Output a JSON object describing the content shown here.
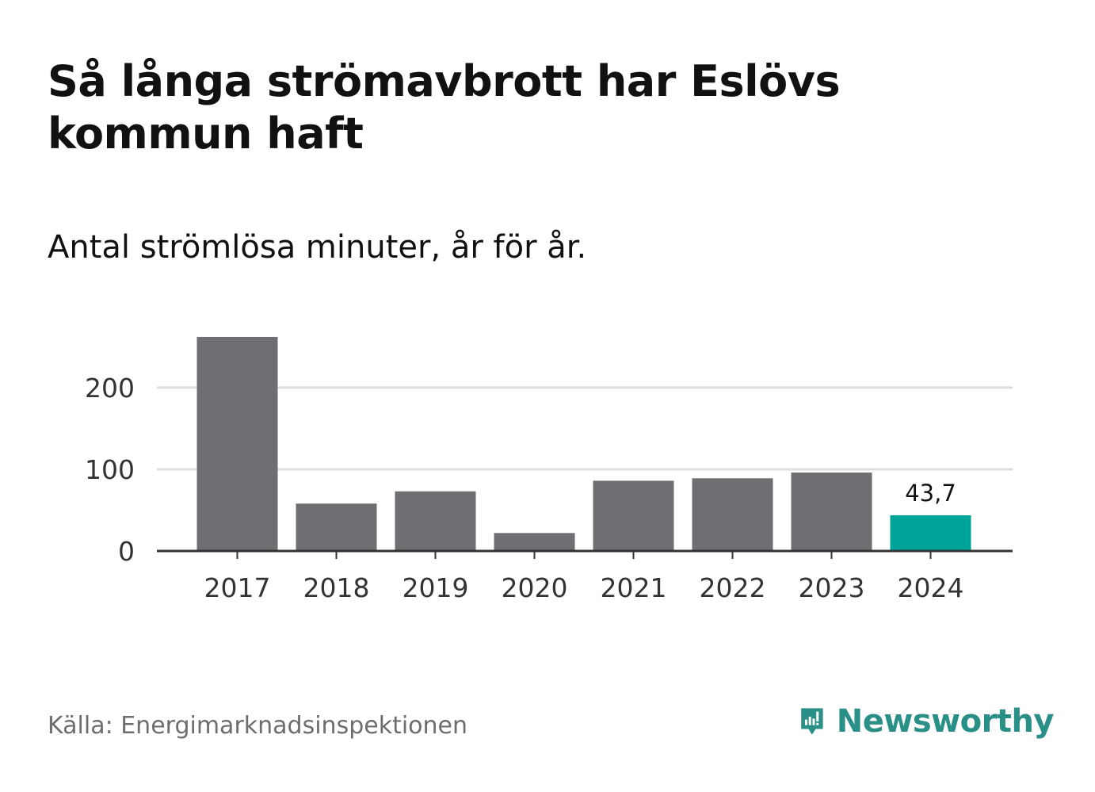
{
  "title": "Så långa strömavbrott har Eslövs kommun haft",
  "subtitle": "Antal strömlösa minuter, år för år.",
  "source": "Källa: Energimarknadsinspektionen",
  "brand": {
    "name": "Newsworthy",
    "icon": "newsworthy-logo-icon"
  },
  "colors": {
    "bar": "#6e6e73",
    "highlight": "#00a397",
    "grid": "#dddddd",
    "axis": "#333333",
    "brand": "#2a8f87"
  },
  "chart_data": {
    "type": "bar",
    "title": "Så långa strömavbrott har Eslövs kommun haft",
    "subtitle": "Antal strömlösa minuter, år för år.",
    "xlabel": "",
    "ylabel": "",
    "categories": [
      "2017",
      "2018",
      "2019",
      "2020",
      "2021",
      "2022",
      "2023",
      "2024"
    ],
    "values": [
      262,
      58,
      73,
      22,
      86,
      89,
      96,
      43.7
    ],
    "highlight_index": 7,
    "data_labels": [
      {
        "index": 7,
        "text": "43,7"
      }
    ],
    "yticks": [
      0,
      100,
      200
    ],
    "ytick_labels": [
      "0",
      "100",
      "200"
    ],
    "ylim": [
      0,
      262
    ],
    "grid": true
  }
}
